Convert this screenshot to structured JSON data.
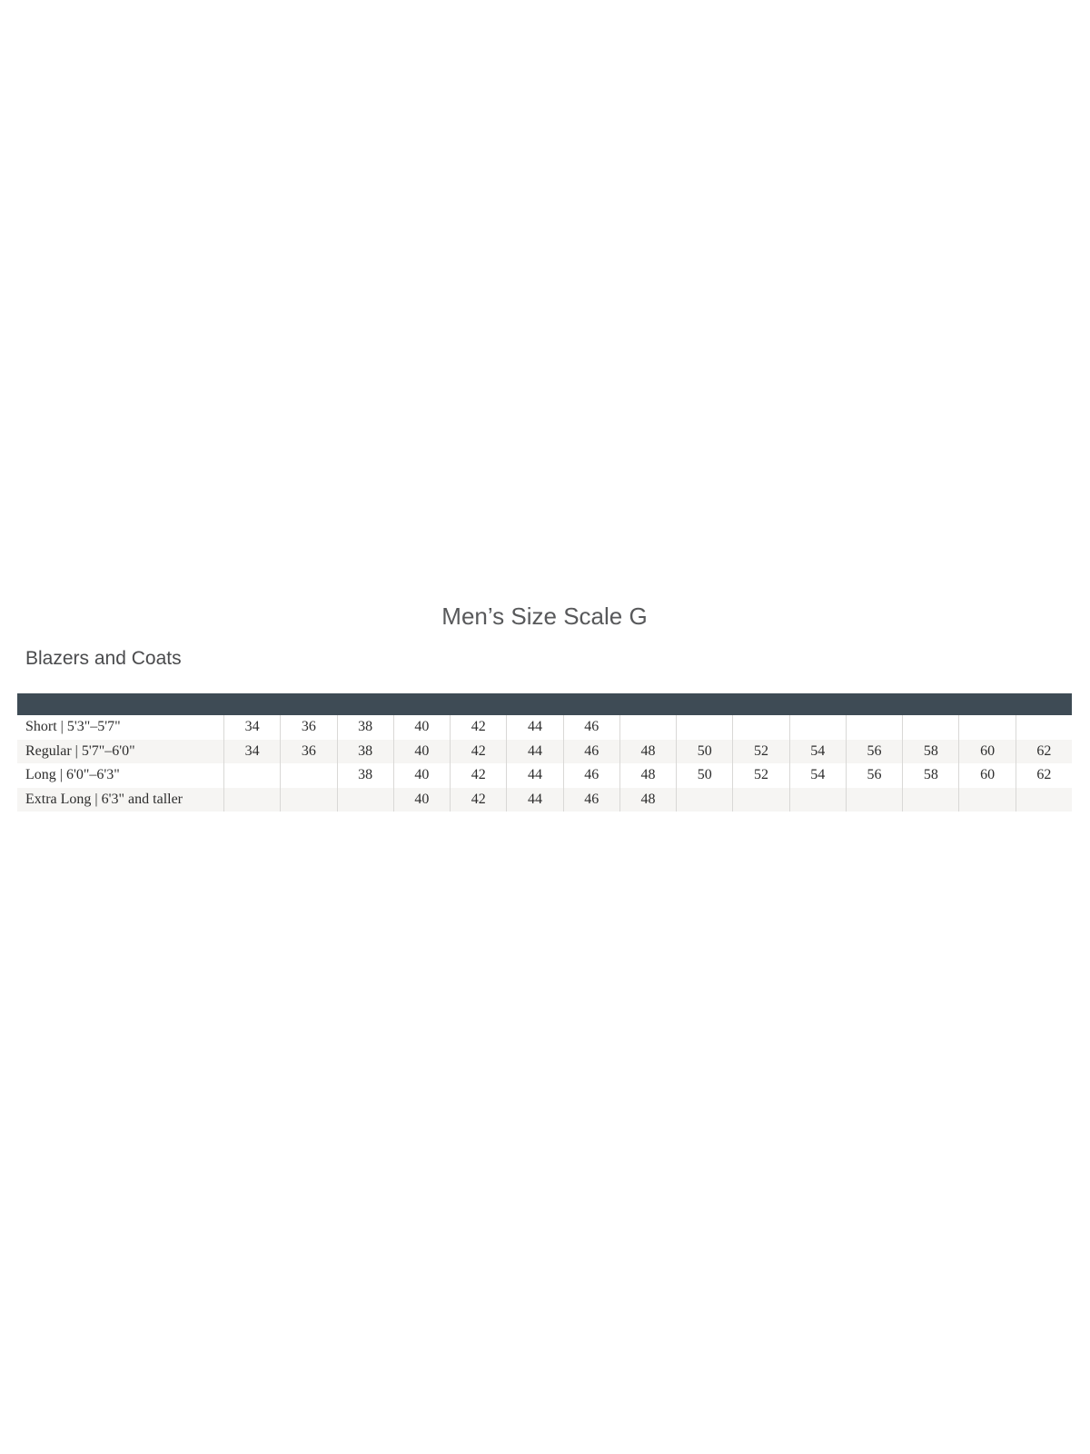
{
  "title": "Men’s Size Scale G",
  "section_heading": "Blazers and Coats",
  "size_table": {
    "columns": [
      "34",
      "36",
      "38",
      "40",
      "42",
      "44",
      "46",
      "48",
      "50",
      "52",
      "54",
      "56",
      "58",
      "60",
      "62"
    ],
    "rows": [
      {
        "label": "Short | 5'3\"–5'7\"",
        "sizes": [
          "34",
          "36",
          "38",
          "40",
          "42",
          "44",
          "46"
        ]
      },
      {
        "label": "Regular | 5'7\"–6'0\"",
        "sizes": [
          "34",
          "36",
          "38",
          "40",
          "42",
          "44",
          "46",
          "48",
          "50",
          "52",
          "54",
          "56",
          "58",
          "60",
          "62"
        ]
      },
      {
        "label": "Long | 6'0\"–6'3\"",
        "sizes": [
          "38",
          "40",
          "42",
          "44",
          "46",
          "48",
          "50",
          "52",
          "54",
          "56",
          "58",
          "60",
          "62"
        ]
      },
      {
        "label": "Extra Long | 6'3\" and taller",
        "sizes": [
          "40",
          "42",
          "44",
          "46",
          "48"
        ]
      }
    ],
    "colors": {
      "header_bar": "#3e4b55",
      "row_alt": "#f6f5f3",
      "divider": "#d9d8d6",
      "table_text": "#2d2d2d",
      "title_text": "#58595b",
      "heading_text": "#4a4b4d"
    }
  }
}
